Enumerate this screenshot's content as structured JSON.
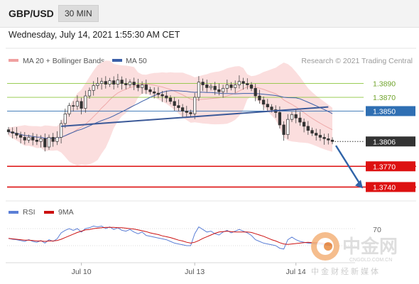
{
  "header": {
    "pair": "GBP/USD",
    "timeframe": "30 MIN",
    "datetime": "Wednesday, July 14, 2021 1:55:30 AM CET"
  },
  "legend": {
    "bollinger": {
      "label": "MA 20 + Bollinger Bands",
      "color": "#f0a0a0"
    },
    "ma50": {
      "label": "MA 50",
      "color": "#3a5fa8"
    }
  },
  "credit": "Research © 2021 Trading Central",
  "rsi_legend": {
    "rsi": {
      "label": "RSI",
      "color": "#5b7fd6"
    },
    "ma9": {
      "label": "9MA",
      "color": "#cc1111"
    }
  },
  "watermark": {
    "cn_name": "中金网",
    "domain": "CNGOLD.COM.CN",
    "tagline": "中金财经新媒体"
  },
  "chart_data": {
    "type": "candlestick",
    "ylim": [
      1.3725,
      1.3905
    ],
    "x_ticks": [
      "Jul 10",
      "Jul 13",
      "Jul 14"
    ],
    "close_path": [
      1.382,
      1.3818,
      1.3815,
      1.3812,
      1.3808,
      1.3812,
      1.3808,
      1.3806,
      1.381,
      1.3798,
      1.3812,
      1.3806,
      1.3812,
      1.3832,
      1.3846,
      1.3858,
      1.3857,
      1.3864,
      1.3854,
      1.3872,
      1.388,
      1.3887,
      1.389,
      1.3893,
      1.3889,
      1.3894,
      1.3889,
      1.3895,
      1.389,
      1.3888,
      1.3892,
      1.3888,
      1.3884,
      1.3888,
      1.3881,
      1.3878,
      1.3876,
      1.3874,
      1.3872,
      1.3869,
      1.3864,
      1.3858,
      1.3855,
      1.385,
      1.3848,
      1.3846,
      1.387,
      1.3892,
      1.3888,
      1.3884,
      1.3886,
      1.3881,
      1.3878,
      1.3883,
      1.3888,
      1.3884,
      1.3888,
      1.3893,
      1.389,
      1.3888,
      1.3883,
      1.3872,
      1.3866,
      1.386,
      1.3856,
      1.3852,
      1.3848,
      1.383,
      1.3816,
      1.3838,
      1.3845,
      1.384,
      1.3834,
      1.3828,
      1.3822,
      1.3818,
      1.3815,
      1.3812,
      1.381,
      1.3808,
      1.3806
    ],
    "current_price": 1.3806,
    "levels": [
      {
        "value": 1.389,
        "label": "1.3890",
        "color": "#8cc63f"
      },
      {
        "value": 1.387,
        "label": "1.3870",
        "color": "#8cc63f"
      },
      {
        "value": 1.385,
        "label": "1.3850",
        "color": "#2f6fb3"
      },
      {
        "value": 1.3806,
        "label": "1.3806",
        "color": "#333333"
      },
      {
        "value": 1.377,
        "label": "1.3770",
        "color": "#dd1111"
      },
      {
        "value": 1.374,
        "label": "1.3740",
        "color": "#dd1111"
      }
    ],
    "trendline": {
      "from_index": 13,
      "from_value": 1.3828,
      "to_index": 79,
      "to_value": 1.3856
    },
    "projection_arrow": {
      "from_value": 1.38,
      "to_value": 1.3738
    },
    "rsi": {
      "level_label": "70",
      "values": [
        47,
        45,
        44,
        42,
        40,
        44,
        40,
        38,
        42,
        36,
        44,
        40,
        46,
        60,
        66,
        70,
        66,
        70,
        62,
        70,
        72,
        76,
        74,
        76,
        70,
        74,
        68,
        72,
        66,
        64,
        68,
        62,
        58,
        62,
        54,
        52,
        50,
        48,
        46,
        44,
        40,
        36,
        34,
        32,
        30,
        30,
        58,
        74,
        68,
        62,
        64,
        58,
        55,
        62,
        66,
        60,
        64,
        68,
        64,
        60,
        54,
        44,
        40,
        36,
        34,
        32,
        30,
        24,
        22,
        44,
        50,
        44,
        40,
        38,
        36,
        35,
        34,
        33,
        32,
        31,
        30
      ],
      "ma9": [
        47,
        46,
        45,
        44,
        43,
        43,
        42,
        41,
        41,
        40,
        41,
        41,
        42,
        45,
        49,
        53,
        57,
        61,
        64,
        67,
        68,
        70,
        71,
        72,
        73,
        73,
        73,
        72,
        72,
        71,
        70,
        69,
        67,
        65,
        63,
        60,
        58,
        56,
        53,
        51,
        49,
        46,
        43,
        41,
        38,
        36,
        38,
        42,
        47,
        51,
        55,
        59,
        62,
        63,
        64,
        63,
        62,
        62,
        62,
        62,
        61,
        58,
        55,
        52,
        48,
        44,
        41,
        37,
        34,
        33,
        34,
        35,
        36,
        37,
        38,
        37,
        37,
        36,
        35,
        34,
        33
      ]
    }
  }
}
